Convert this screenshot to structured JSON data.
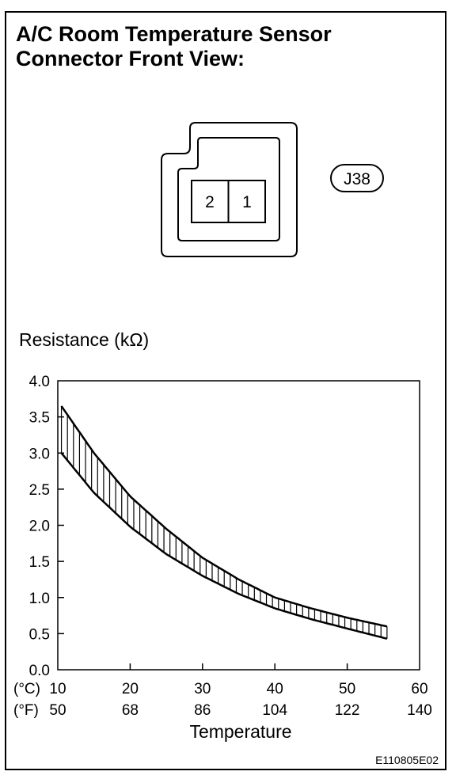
{
  "title_line1": "A/C Room Temperature Sensor",
  "title_line2": "Connector Front View:",
  "connector": {
    "id_label": "J38",
    "pins": [
      "2",
      "1"
    ]
  },
  "figure_code": "E110805E02",
  "chart_data": {
    "type": "area",
    "ylabel": "Resistance (kΩ)",
    "xlabel": "Temperature",
    "ylim": [
      0,
      4.0
    ],
    "xlim": [
      10,
      60
    ],
    "yticks": [
      "0.0",
      "0.5",
      "1.0",
      "1.5",
      "2.0",
      "2.5",
      "3.0",
      "3.5",
      "4.0"
    ],
    "xticks_c": [
      "10",
      "20",
      "30",
      "40",
      "50",
      "60"
    ],
    "xticks_f": [
      "50",
      "68",
      "86",
      "104",
      "122",
      "140"
    ],
    "x_unit_c": "(°C)",
    "x_unit_f": "(°F)",
    "band": {
      "x": [
        10.5,
        15,
        20,
        25,
        30,
        35,
        40,
        45,
        50,
        55.5
      ],
      "upper": [
        3.65,
        3.0,
        2.4,
        1.95,
        1.55,
        1.25,
        1.0,
        0.85,
        0.72,
        0.6
      ],
      "lower": [
        3.0,
        2.45,
        1.98,
        1.6,
        1.3,
        1.05,
        0.85,
        0.7,
        0.57,
        0.43
      ]
    }
  }
}
